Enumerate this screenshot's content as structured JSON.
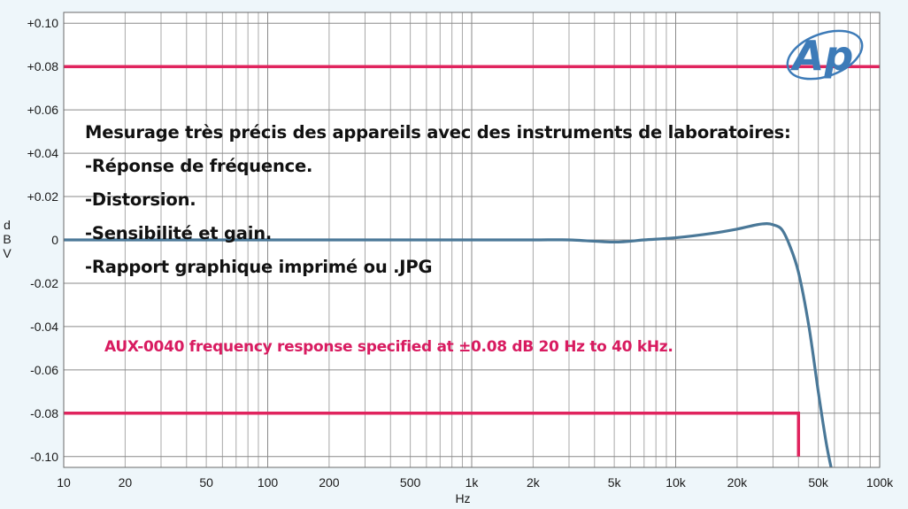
{
  "chart_data": {
    "type": "line",
    "xlabel": "Hz",
    "ylabel": "dBV",
    "x_scale": "log",
    "xlim": [
      10,
      100000
    ],
    "ylim": [
      -0.105,
      0.105
    ],
    "grid": true,
    "x_tick_labels": [
      {
        "v": 10,
        "t": "10"
      },
      {
        "v": 20,
        "t": "20"
      },
      {
        "v": 50,
        "t": "50"
      },
      {
        "v": 100,
        "t": "100"
      },
      {
        "v": 200,
        "t": "200"
      },
      {
        "v": 500,
        "t": "500"
      },
      {
        "v": 1000,
        "t": "1k"
      },
      {
        "v": 2000,
        "t": "2k"
      },
      {
        "v": 5000,
        "t": "5k"
      },
      {
        "v": 10000,
        "t": "10k"
      },
      {
        "v": 20000,
        "t": "20k"
      },
      {
        "v": 50000,
        "t": "50k"
      },
      {
        "v": 100000,
        "t": "100k"
      }
    ],
    "y_tick_labels": [
      {
        "v": 0.1,
        "t": "+0.10"
      },
      {
        "v": 0.08,
        "t": "+0.08"
      },
      {
        "v": 0.06,
        "t": "+0.06"
      },
      {
        "v": 0.04,
        "t": "+0.04"
      },
      {
        "v": 0.02,
        "t": "+0.02"
      },
      {
        "v": 0,
        "t": "0"
      },
      {
        "v": -0.02,
        "t": "-0.02"
      },
      {
        "v": -0.04,
        "t": "-0.04"
      },
      {
        "v": -0.06,
        "t": "-0.06"
      },
      {
        "v": -0.08,
        "t": "-0.08"
      },
      {
        "v": -0.1,
        "t": "-0.10"
      }
    ],
    "series": [
      {
        "color": "#4a7898",
        "x": [
          10,
          20,
          50,
          100,
          200,
          500,
          1000,
          2000,
          3000,
          5000,
          7000,
          10000,
          15000,
          20000,
          25000,
          28000,
          30000,
          33000,
          36000,
          40000,
          45000,
          50000,
          55000,
          60000
        ],
        "y": [
          0.0,
          0.0,
          0.0,
          0.0,
          0.0,
          0.0,
          0.0,
          0.0,
          0.0,
          -0.001,
          0.0,
          0.001,
          0.003,
          0.005,
          0.007,
          0.0075,
          0.007,
          0.005,
          -0.002,
          -0.015,
          -0.04,
          -0.07,
          -0.095,
          -0.112
        ]
      }
    ],
    "limit_lines": [
      {
        "color": "#e0245e",
        "x": [
          10,
          100000
        ],
        "y": [
          0.08,
          0.08
        ]
      },
      {
        "color": "#e0245e",
        "x": [
          10,
          40000,
          40000
        ],
        "y": [
          -0.08,
          -0.08,
          -0.1
        ]
      }
    ],
    "annotation": "AUX-0040 frequency response specified at ±0.08 dB 20 Hz to 40 kHz."
  },
  "overlay": {
    "lines": [
      "Mesurage très précis des appareils avec des instruments de laboratoires:",
      "-Réponse de fréquence.",
      "-Distorsion.",
      "-Sensibilité et gain.",
      "-Rapport graphique imprimé ou .JPG"
    ]
  },
  "logo": {
    "text": "Ap",
    "color": "#3d7bb8"
  }
}
